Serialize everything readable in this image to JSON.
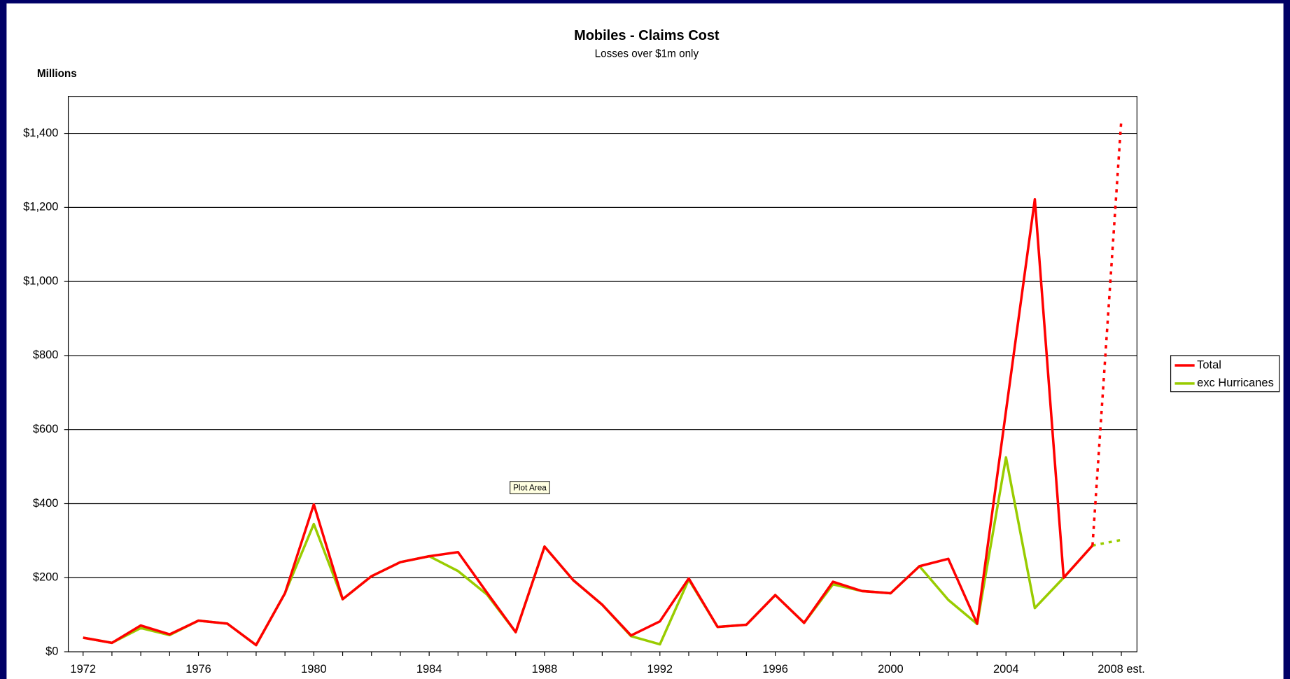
{
  "chart_data": {
    "type": "line",
    "title": "Mobiles - Claims Cost",
    "subtitle": "Losses over $1m only",
    "y_axis_label": "Millions",
    "categories": [
      "1972",
      null,
      null,
      null,
      "1976",
      null,
      null,
      null,
      "1980",
      null,
      null,
      null,
      "1984",
      null,
      null,
      null,
      "1988",
      null,
      null,
      null,
      "1992",
      null,
      null,
      null,
      "1996",
      null,
      null,
      null,
      "2000",
      null,
      null,
      null,
      "2004",
      null,
      null,
      null,
      "2008 est."
    ],
    "series": [
      {
        "name": "Total",
        "color": "#ff0000",
        "values": [
          38,
          24,
          71,
          47,
          84,
          76,
          18,
          158,
          398,
          142,
          204,
          242,
          258,
          269,
          160,
          53,
          284,
          193,
          127,
          44,
          82,
          198,
          67,
          73,
          153,
          78,
          189,
          164,
          158,
          231,
          251,
          76,
          650,
          1222,
          200,
          287,
          1438
        ]
      },
      {
        "name": "exc Hurricanes",
        "color": "#99cc00",
        "values": [
          38,
          24,
          64,
          45,
          84,
          76,
          18,
          158,
          345,
          142,
          204,
          242,
          258,
          218,
          155,
          53,
          284,
          193,
          127,
          42,
          20,
          195,
          67,
          73,
          153,
          78,
          182,
          164,
          158,
          231,
          140,
          75,
          525,
          118,
          200,
          287,
          302
        ]
      }
    ],
    "last_segment_dash": "dotted",
    "ylim": [
      0,
      1500
    ],
    "yticks": [
      {
        "value": 0,
        "label": "$0"
      },
      {
        "value": 200,
        "label": "$200"
      },
      {
        "value": 400,
        "label": "$400"
      },
      {
        "value": 600,
        "label": "$600"
      },
      {
        "value": 800,
        "label": "$800"
      },
      {
        "value": 1000,
        "label": "$1,000"
      },
      {
        "value": 1200,
        "label": "$1,200"
      },
      {
        "value": 1400,
        "label": "$1,400"
      }
    ],
    "grid": true,
    "legend": "right"
  },
  "tooltip": "Plot Area"
}
